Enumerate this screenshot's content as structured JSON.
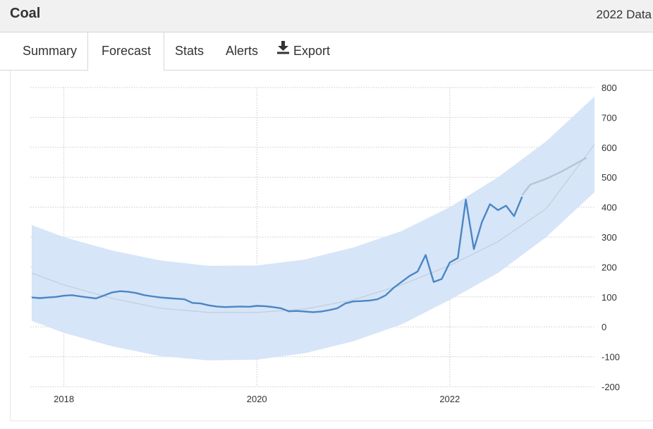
{
  "header": {
    "title": "Coal",
    "data_link": "2022 Data"
  },
  "tabs": [
    {
      "label": "Summary",
      "active": false
    },
    {
      "label": "Forecast",
      "active": true
    },
    {
      "label": "Stats",
      "active": false
    },
    {
      "label": "Alerts",
      "active": false
    },
    {
      "label": "Export",
      "active": false,
      "icon": "download-icon"
    }
  ],
  "colors": {
    "line": "#4a86c5",
    "band": "#d4e4f8",
    "trend": "#c3cfdc",
    "forecast": "#b8c4d2"
  },
  "chart_data": {
    "type": "line",
    "title": "",
    "xlabel": "",
    "ylabel": "",
    "ylim": [
      -200,
      800
    ],
    "y_ticks": [
      800,
      700,
      600,
      500,
      400,
      300,
      200,
      100,
      0,
      -100,
      -200
    ],
    "x_ticks": [
      "2018",
      "2020",
      "2022"
    ],
    "xlim": [
      "2017-09",
      "2023-07"
    ],
    "grid": true,
    "y_axis_side": "right",
    "series": [
      {
        "role": "actual",
        "points": [
          [
            "2017-09",
            98
          ],
          [
            "2017-10",
            96
          ],
          [
            "2017-11",
            98
          ],
          [
            "2017-12",
            100
          ],
          [
            "2018-01",
            104
          ],
          [
            "2018-02",
            106
          ],
          [
            "2018-03",
            102
          ],
          [
            "2018-04",
            98
          ],
          [
            "2018-05",
            95
          ],
          [
            "2018-06",
            105
          ],
          [
            "2018-07",
            115
          ],
          [
            "2018-08",
            119
          ],
          [
            "2018-09",
            117
          ],
          [
            "2018-10",
            113
          ],
          [
            "2018-11",
            106
          ],
          [
            "2018-12",
            102
          ],
          [
            "2019-01",
            98
          ],
          [
            "2019-02",
            96
          ],
          [
            "2019-03",
            94
          ],
          [
            "2019-04",
            92
          ],
          [
            "2019-05",
            80
          ],
          [
            "2019-06",
            78
          ],
          [
            "2019-07",
            72
          ],
          [
            "2019-08",
            68
          ],
          [
            "2019-09",
            66
          ],
          [
            "2019-10",
            67
          ],
          [
            "2019-11",
            68
          ],
          [
            "2019-12",
            67
          ],
          [
            "2020-01",
            70
          ],
          [
            "2020-02",
            69
          ],
          [
            "2020-03",
            66
          ],
          [
            "2020-04",
            62
          ],
          [
            "2020-05",
            52
          ],
          [
            "2020-06",
            53
          ],
          [
            "2020-07",
            51
          ],
          [
            "2020-08",
            49
          ],
          [
            "2020-09",
            51
          ],
          [
            "2020-10",
            56
          ],
          [
            "2020-11",
            62
          ],
          [
            "2020-12",
            78
          ],
          [
            "2021-01",
            85
          ],
          [
            "2021-02",
            86
          ],
          [
            "2021-03",
            88
          ],
          [
            "2021-04",
            92
          ],
          [
            "2021-05",
            105
          ],
          [
            "2021-06",
            130
          ],
          [
            "2021-07",
            150
          ],
          [
            "2021-08",
            170
          ],
          [
            "2021-09",
            185
          ],
          [
            "2021-10",
            240
          ],
          [
            "2021-11",
            150
          ],
          [
            "2021-12",
            160
          ],
          [
            "2022-01",
            215
          ],
          [
            "2022-02",
            230
          ],
          [
            "2022-03",
            425
          ],
          [
            "2022-04",
            260
          ],
          [
            "2022-05",
            350
          ],
          [
            "2022-06",
            410
          ],
          [
            "2022-07",
            390
          ],
          [
            "2022-08",
            405
          ],
          [
            "2022-09",
            370
          ],
          [
            "2022-10",
            435
          ]
        ]
      },
      {
        "role": "forecast",
        "points": [
          [
            "2022-10",
            440
          ],
          [
            "2022-11",
            475
          ],
          [
            "2023-01",
            495
          ],
          [
            "2023-03",
            520
          ],
          [
            "2023-06",
            565
          ]
        ]
      }
    ],
    "trend": [
      [
        "2017-09",
        180
      ],
      [
        "2018-01",
        140
      ],
      [
        "2018-07",
        95
      ],
      [
        "2019-01",
        62
      ],
      [
        "2019-07",
        48
      ],
      [
        "2020-01",
        48
      ],
      [
        "2020-07",
        60
      ],
      [
        "2021-01",
        90
      ],
      [
        "2021-07",
        140
      ],
      [
        "2022-01",
        205
      ],
      [
        "2022-07",
        285
      ],
      [
        "2023-01",
        395
      ],
      [
        "2023-07",
        610
      ]
    ],
    "band_upper": [
      [
        "2017-09",
        340
      ],
      [
        "2018-01",
        300
      ],
      [
        "2018-07",
        255
      ],
      [
        "2019-01",
        222
      ],
      [
        "2019-07",
        204
      ],
      [
        "2020-01",
        205
      ],
      [
        "2020-07",
        225
      ],
      [
        "2021-01",
        265
      ],
      [
        "2021-07",
        320
      ],
      [
        "2022-01",
        400
      ],
      [
        "2022-07",
        500
      ],
      [
        "2023-01",
        620
      ],
      [
        "2023-07",
        770
      ]
    ],
    "band_lower": [
      [
        "2017-09",
        20
      ],
      [
        "2018-01",
        -20
      ],
      [
        "2018-07",
        -65
      ],
      [
        "2019-01",
        -98
      ],
      [
        "2019-07",
        -112
      ],
      [
        "2020-01",
        -110
      ],
      [
        "2020-07",
        -88
      ],
      [
        "2021-01",
        -48
      ],
      [
        "2021-07",
        8
      ],
      [
        "2022-01",
        90
      ],
      [
        "2022-07",
        180
      ],
      [
        "2023-01",
        300
      ],
      [
        "2023-07",
        450
      ]
    ]
  }
}
